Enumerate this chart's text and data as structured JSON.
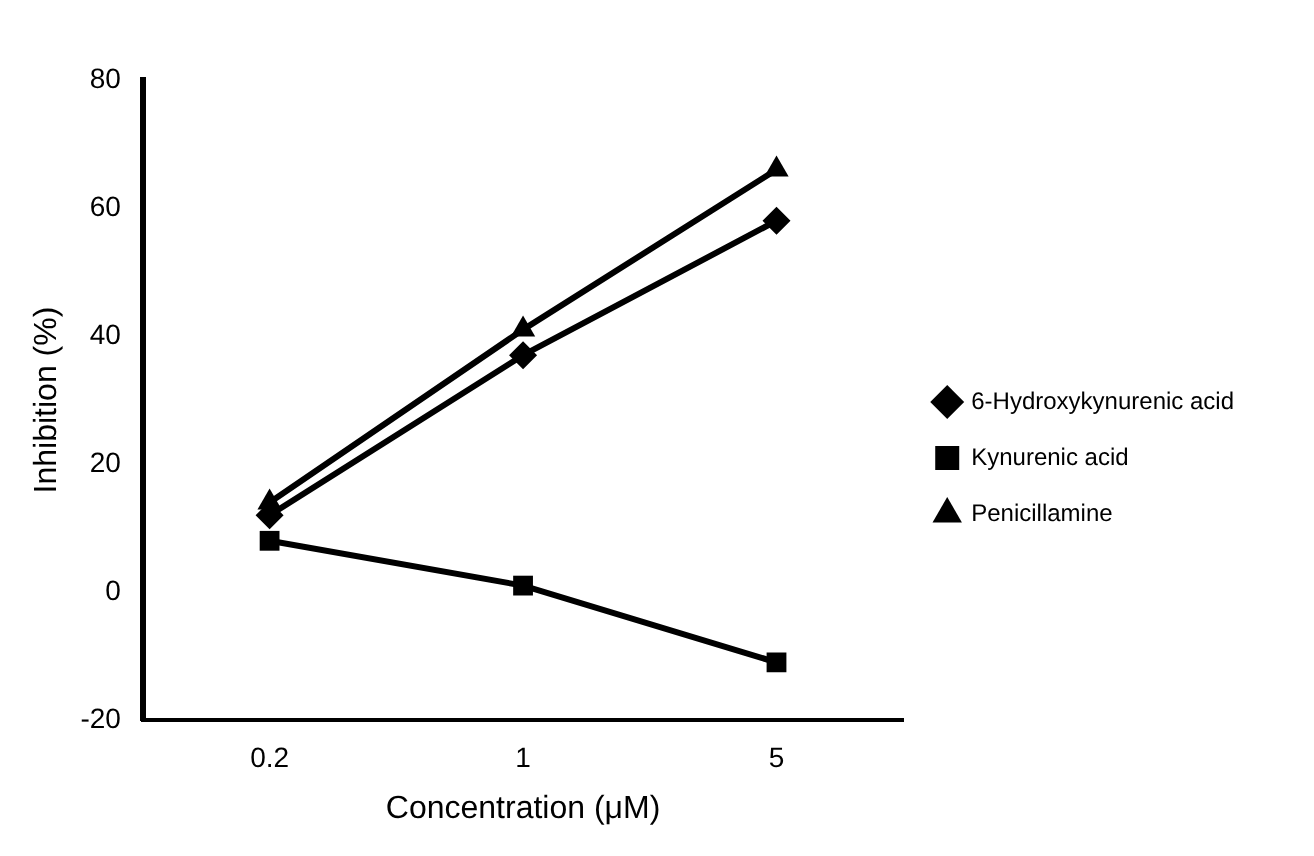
{
  "chart_data": {
    "type": "line",
    "xlabel": "Concentration (μM)",
    "ylabel": "Inhibition (%)",
    "categories": [
      "0.2",
      "1",
      "5"
    ],
    "series": [
      {
        "name": "6-Hydroxykynurenic acid",
        "color": "#000000",
        "marker": "diamond",
        "values": [
          12,
          37,
          58
        ]
      },
      {
        "name": "Kynurenic acid",
        "color": "#000000",
        "marker": "square",
        "values": [
          8,
          1,
          -11
        ]
      },
      {
        "name": "Penicillamine",
        "color": "#000000",
        "marker": "triangle",
        "values": [
          14,
          41,
          66
        ]
      }
    ],
    "ylim": [
      -20,
      80
    ],
    "yticks": [
      -20,
      0,
      20,
      40,
      60,
      80
    ],
    "grid": false,
    "legend": "right"
  }
}
